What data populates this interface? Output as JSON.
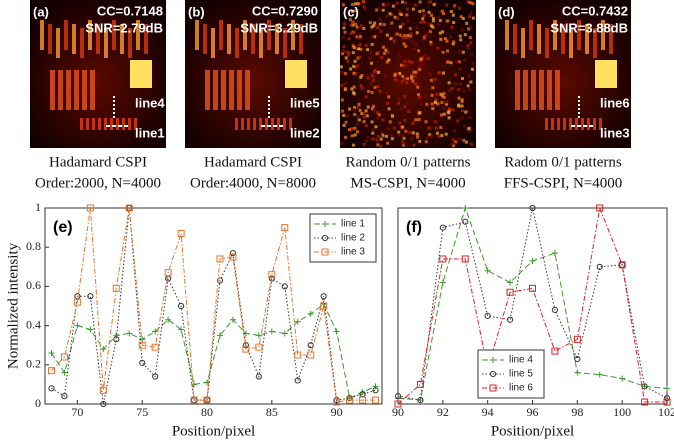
{
  "panels": [
    {
      "label": "(a)",
      "cc": "CC=0.7148",
      "snr": "SNR=2.79dB",
      "lines": [
        "line4",
        "line1"
      ],
      "caption": [
        "Hadamard CSPI",
        "Order:2000, N=4000"
      ]
    },
    {
      "label": "(b)",
      "cc": "CC=0.7290",
      "snr": "SNR=3.29dB",
      "lines": [
        "line5",
        "line2"
      ],
      "caption": [
        "Hadamard CSPI",
        "Order:4000, N=8000"
      ]
    },
    {
      "label": "(c)",
      "caption": [
        "Random 0/1 patterns",
        "MS-CSPI, N=4000"
      ]
    },
    {
      "label": "(d)",
      "cc": "CC=0.7432",
      "snr": "SNR=3.88dB",
      "lines": [
        "line6",
        "line3"
      ],
      "caption": [
        "Radom 0/1 patterns",
        "FFS-CSPI, N=4000"
      ]
    }
  ],
  "chart_data": [
    {
      "type": "line",
      "label": "(e)",
      "xlabel": "Position/pixel",
      "ylabel": "Normalized intensity",
      "x": [
        68,
        69,
        70,
        71,
        72,
        73,
        74,
        75,
        76,
        77,
        78,
        79,
        80,
        81,
        82,
        83,
        84,
        85,
        86,
        87,
        88,
        89,
        90,
        91,
        92,
        93
      ],
      "xlim": [
        67.5,
        93.5
      ],
      "xticks": [
        70,
        75,
        80,
        85,
        90
      ],
      "ylim": [
        0,
        1
      ],
      "yticks": [
        0,
        0.2,
        0.4,
        0.6,
        0.8,
        1
      ],
      "legend": "upper right",
      "series": [
        {
          "name": "line 1",
          "color": "#3a9a2a",
          "marker": "plus",
          "dash": "6,3",
          "values": [
            0.26,
            0.16,
            0.4,
            0.38,
            0.28,
            0.35,
            0.36,
            0.33,
            0.37,
            0.43,
            0.38,
            0.1,
            0.11,
            0.35,
            0.43,
            0.36,
            0.35,
            0.37,
            0.36,
            0.42,
            0.46,
            0.51,
            0.37,
            0.03,
            0.06,
            0.09
          ]
        },
        {
          "name": "line 2",
          "color": "#333333",
          "marker": "circle",
          "dash": "1.5,2",
          "values": [
            0.08,
            0.04,
            0.55,
            0.55,
            0.0,
            0.33,
            1.0,
            0.21,
            0.14,
            0.64,
            0.5,
            0.02,
            0.02,
            0.63,
            0.77,
            0.3,
            0.14,
            0.64,
            0.6,
            0.12,
            0.3,
            0.55,
            0.02,
            0.03,
            0.05,
            0.07
          ]
        },
        {
          "name": "line 3",
          "color": "#e8742a",
          "marker": "square",
          "dash": "5,2,1.5,2",
          "values": [
            0.17,
            0.24,
            0.52,
            1.0,
            0.07,
            0.59,
            1.0,
            0.3,
            0.29,
            0.67,
            0.87,
            0.02,
            0.02,
            0.74,
            0.75,
            0.28,
            0.29,
            0.66,
            0.9,
            0.25,
            0.25,
            0.5,
            0.01,
            0.02,
            0.02,
            0.02
          ]
        }
      ]
    },
    {
      "type": "line",
      "label": "(f)",
      "xlabel": "Position/pixel",
      "x": [
        90,
        91,
        92,
        93,
        94,
        95,
        96,
        97,
        98,
        99,
        100,
        101,
        102
      ],
      "xlim": [
        90,
        102
      ],
      "xticks": [
        90,
        92,
        94,
        96,
        98,
        100,
        102
      ],
      "ylim": [
        0,
        1
      ],
      "legend": "lower left",
      "series": [
        {
          "name": "line 4",
          "color": "#3a9a2a",
          "marker": "plus",
          "dash": "6,3",
          "values": [
            0.03,
            0.02,
            0.62,
            1.0,
            0.68,
            0.62,
            0.73,
            0.77,
            0.16,
            0.15,
            0.13,
            0.09,
            0.08
          ]
        },
        {
          "name": "line 5",
          "color": "#333333",
          "marker": "circle",
          "dash": "1.5,2",
          "values": [
            0.04,
            0.02,
            0.9,
            0.93,
            0.45,
            0.43,
            1.0,
            0.48,
            0.23,
            0.7,
            0.71,
            0.09,
            0.03
          ]
        },
        {
          "name": "line 6",
          "color": "#e02020",
          "marker": "square",
          "dash": "5,2,1.5,2",
          "values": [
            0.0,
            0.1,
            0.74,
            0.74,
            0.18,
            0.57,
            0.59,
            0.27,
            0.33,
            1.0,
            0.71,
            0.01,
            0.01
          ]
        }
      ]
    }
  ]
}
